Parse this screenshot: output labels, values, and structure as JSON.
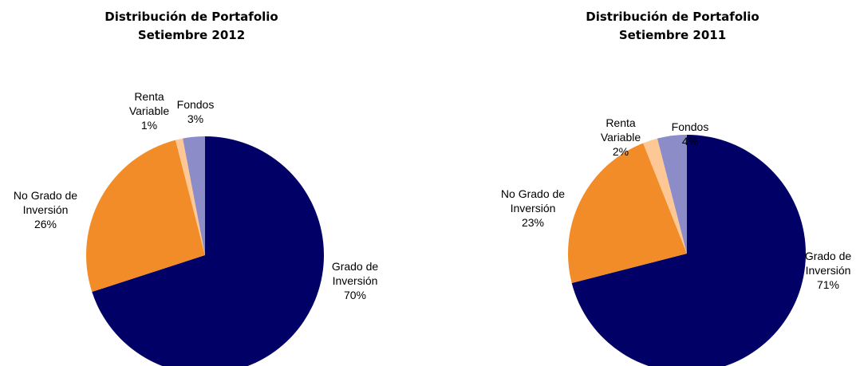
{
  "chart_data": [
    {
      "type": "pie",
      "title": "Distribución de Portafolio",
      "subtitle": "Setiembre 2012",
      "categories": [
        "Grado de Inversión",
        "No Grado de Inversión",
        "Renta Variable",
        "Fondos"
      ],
      "values": [
        70,
        26,
        1,
        3
      ],
      "value_labels": [
        "70%",
        "26%",
        "1%",
        "3%"
      ],
      "colors": [
        "#000066",
        "#f28c28",
        "#fdc896",
        "#8c8cc8"
      ]
    },
    {
      "type": "pie",
      "title": "Distribución de Portafolio",
      "subtitle": "Setiembre 2011",
      "categories": [
        "Grado de Inversión",
        "No Grado de Inversión",
        "Renta Variable",
        "Fondos"
      ],
      "values": [
        71,
        23,
        2,
        4
      ],
      "value_labels": [
        "71%",
        "23%",
        "2%",
        "4%"
      ],
      "colors": [
        "#000066",
        "#f28c28",
        "#fdc896",
        "#8c8cc8"
      ]
    }
  ]
}
